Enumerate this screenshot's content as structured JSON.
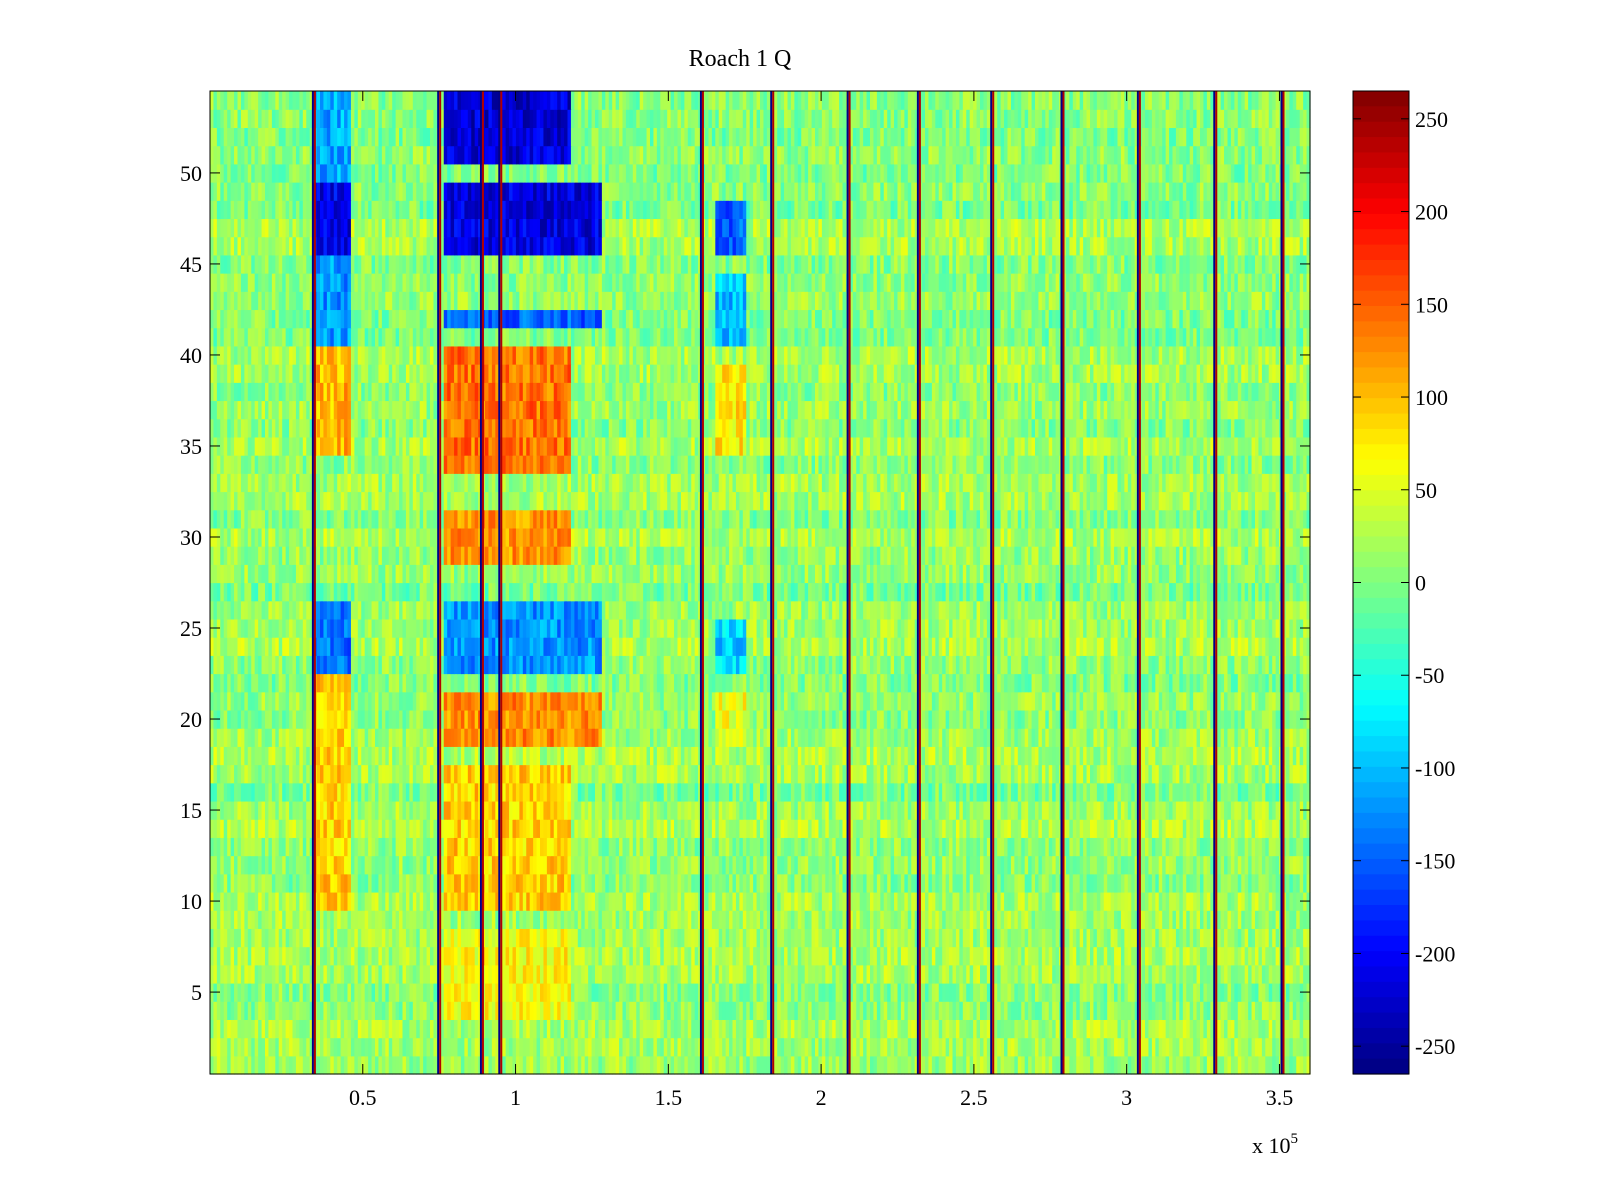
{
  "chart_data": {
    "type": "heatmap",
    "title": "Roach 1 Q",
    "xlabel": "",
    "ylabel": "",
    "xlim": [
      0,
      360000
    ],
    "ylim": [
      0.5,
      54.5
    ],
    "x_exponent_label": "x 10",
    "x_exponent_power": "5",
    "x_ticks": [
      {
        "value": 50000,
        "label": "0.5"
      },
      {
        "value": 100000,
        "label": "1"
      },
      {
        "value": 150000,
        "label": "1.5"
      },
      {
        "value": 200000,
        "label": "2"
      },
      {
        "value": 250000,
        "label": "2.5"
      },
      {
        "value": 300000,
        "label": "3"
      },
      {
        "value": 350000,
        "label": "3.5"
      }
    ],
    "y_ticks": [
      {
        "value": 5,
        "label": "5"
      },
      {
        "value": 10,
        "label": "10"
      },
      {
        "value": 15,
        "label": "15"
      },
      {
        "value": 20,
        "label": "20"
      },
      {
        "value": 25,
        "label": "25"
      },
      {
        "value": 30,
        "label": "30"
      },
      {
        "value": 35,
        "label": "35"
      },
      {
        "value": 40,
        "label": "40"
      },
      {
        "value": 45,
        "label": "45"
      },
      {
        "value": 50,
        "label": "50"
      }
    ],
    "rows": 54,
    "colorscale": "jet",
    "clim": [
      -265,
      265
    ],
    "colorbar_ticks": [
      {
        "value": 250,
        "label": "250"
      },
      {
        "value": 200,
        "label": "200"
      },
      {
        "value": 150,
        "label": "150"
      },
      {
        "value": 100,
        "label": "100"
      },
      {
        "value": 50,
        "label": "50"
      },
      {
        "value": 0,
        "label": "0"
      },
      {
        "value": -50,
        "label": "-50"
      },
      {
        "value": -100,
        "label": "-100"
      },
      {
        "value": -150,
        "label": "-150"
      },
      {
        "value": -200,
        "label": "-200"
      },
      {
        "value": -250,
        "label": "-250"
      }
    ],
    "grid": false,
    "baseline_value": 10,
    "spike_positions": [
      34000,
      75000,
      89000,
      95000,
      161000,
      184000,
      209000,
      232000,
      256000,
      279000,
      304000,
      329000,
      351000
    ],
    "regions": [
      {
        "x": [
          34000,
          46000
        ],
        "y": [
          46,
          49
        ],
        "value": -210
      },
      {
        "x": [
          34000,
          46000
        ],
        "y": [
          41,
          45
        ],
        "value": -120
      },
      {
        "x": [
          34000,
          46000
        ],
        "y": [
          23,
          26
        ],
        "value": -140
      },
      {
        "x": [
          34000,
          46000
        ],
        "y": [
          35,
          40
        ],
        "value": 105
      },
      {
        "x": [
          34000,
          46000
        ],
        "y": [
          10,
          22
        ],
        "value": 90
      },
      {
        "x": [
          34000,
          46000
        ],
        "y": [
          50,
          54
        ],
        "value": -110
      },
      {
        "x": [
          77000,
          118000
        ],
        "y": [
          51,
          54
        ],
        "value": -220
      },
      {
        "x": [
          77000,
          128000
        ],
        "y": [
          46,
          49
        ],
        "value": -215
      },
      {
        "x": [
          77000,
          128000
        ],
        "y": [
          42,
          42
        ],
        "value": -150
      },
      {
        "x": [
          77000,
          118000
        ],
        "y": [
          34,
          40
        ],
        "value": 140
      },
      {
        "x": [
          77000,
          118000
        ],
        "y": [
          29,
          31
        ],
        "value": 120
      },
      {
        "x": [
          77000,
          128000
        ],
        "y": [
          23,
          26
        ],
        "value": -120
      },
      {
        "x": [
          77000,
          128000
        ],
        "y": [
          19,
          21
        ],
        "value": 125
      },
      {
        "x": [
          77000,
          118000
        ],
        "y": [
          10,
          17
        ],
        "value": 90
      },
      {
        "x": [
          77000,
          118000
        ],
        "y": [
          4,
          8
        ],
        "value": 65
      },
      {
        "x": [
          165000,
          175000
        ],
        "y": [
          46,
          48
        ],
        "value": -150
      },
      {
        "x": [
          165000,
          175000
        ],
        "y": [
          41,
          44
        ],
        "value": -100
      },
      {
        "x": [
          165000,
          175000
        ],
        "y": [
          23,
          25
        ],
        "value": -90
      },
      {
        "x": [
          165000,
          175000
        ],
        "y": [
          35,
          39
        ],
        "value": 75
      },
      {
        "x": [
          165000,
          175000
        ],
        "y": [
          19,
          21
        ],
        "value": 60
      }
    ]
  }
}
